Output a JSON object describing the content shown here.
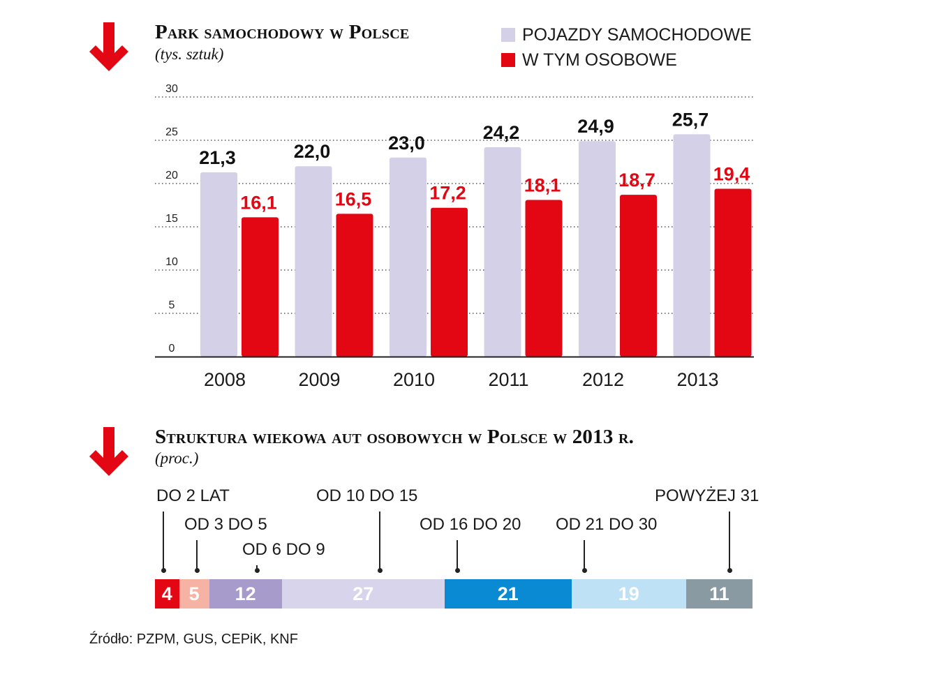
{
  "colors": {
    "accent_red": "#e30613",
    "lavender": "#d4d0e8",
    "pink": "#f6b3a4",
    "purple": "#a79bcb",
    "light_lavender": "#d8d4ec",
    "blue": "#0a8ad2",
    "light_blue": "#bfe1f5",
    "gray": "#8a9aa3"
  },
  "icons": {
    "section_arrow": "down-arrow-icon"
  },
  "chart_data": [
    {
      "type": "bar",
      "title": "Park samochodowy w Polsce",
      "subtitle": "(tys. sztuk)",
      "categories": [
        "2008",
        "2009",
        "2010",
        "2011",
        "2012",
        "2013"
      ],
      "series": [
        {
          "name": "POJAZDY SAMOCHODOWE",
          "color": "#d4d0e8",
          "label_color": "#111111",
          "values": [
            21.3,
            22.0,
            23.0,
            24.2,
            24.9,
            25.7
          ],
          "labels": [
            "21,3",
            "22,0",
            "23,0",
            "24,2",
            "24,9",
            "25,7"
          ]
        },
        {
          "name": "W TYM OSOBOWE",
          "color": "#e30613",
          "label_color": "#e30613",
          "values": [
            16.1,
            16.5,
            17.2,
            18.1,
            18.7,
            19.4
          ],
          "labels": [
            "16,1",
            "16,5",
            "17,2",
            "18,1",
            "18,7",
            "19,4"
          ]
        }
      ],
      "yticks": [
        "0",
        "5",
        "10",
        "15",
        "20",
        "25",
        "30"
      ],
      "ylim": [
        0,
        30
      ],
      "grid": true,
      "legend": "top-right"
    },
    {
      "type": "bar",
      "stacked": true,
      "title": "Struktura wiekowa aut osobowych w Polsce w 2013 r.",
      "subtitle": "(proc.)",
      "segments": [
        {
          "label": "DO 2 LAT",
          "value": 4,
          "color": "#e30613",
          "text_color": "#ffffff"
        },
        {
          "label": "OD 3 DO 5",
          "value": 5,
          "color": "#f6b3a4",
          "text_color": "#ffffff"
        },
        {
          "label": "OD 6 DO 9",
          "value": 12,
          "color": "#a79bcb",
          "text_color": "#ffffff"
        },
        {
          "label": "OD 10 DO 15",
          "value": 27,
          "color": "#d8d4ec",
          "text_color": "#ffffff"
        },
        {
          "label": "OD 16 DO 20",
          "value": 21,
          "color": "#0a8ad2",
          "text_color": "#ffffff"
        },
        {
          "label": "OD 21 DO 30",
          "value": 19,
          "color": "#bfe1f5",
          "text_color": "#ffffff"
        },
        {
          "label": "POWYŻEJ 31",
          "value": 11,
          "color": "#8a9aa3",
          "text_color": "#ffffff"
        }
      ]
    }
  ],
  "source": "Źródło: PZPM, GUS, CEPiK, KNF"
}
